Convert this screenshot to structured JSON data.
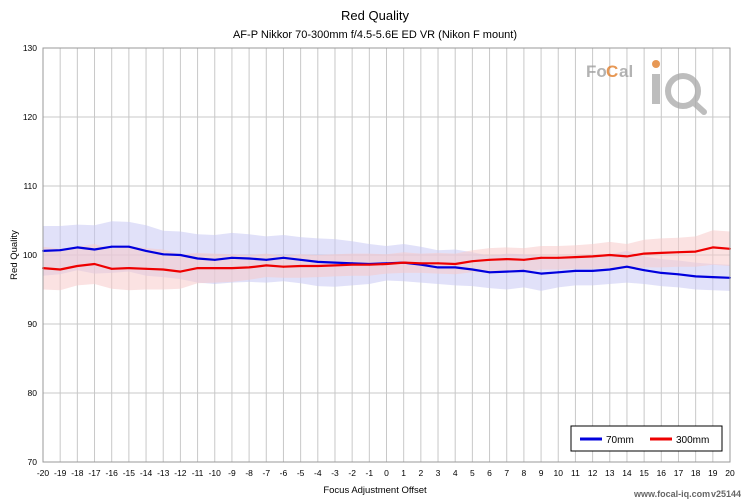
{
  "chart_data": {
    "type": "line",
    "title": "Red Quality",
    "subtitle": "AF-P Nikkor 70-300mm f/4.5-5.6E ED VR (Nikon F mount)",
    "xlabel": "Focus Adjustment Offset",
    "ylabel": "Red Quality",
    "xlim": [
      -20,
      20
    ],
    "ylim": [
      70,
      130
    ],
    "yticks": [
      70,
      80,
      90,
      100,
      110,
      120,
      130
    ],
    "x": [
      -20,
      -19,
      -18,
      -17,
      -16,
      -15,
      -14,
      -13,
      -12,
      -11,
      -10,
      -9,
      -8,
      -7,
      -6,
      -5,
      -4,
      -3,
      -2,
      -1,
      0,
      1,
      2,
      3,
      4,
      5,
      6,
      7,
      8,
      9,
      10,
      11,
      12,
      13,
      14,
      15,
      16,
      17,
      18,
      19,
      20
    ],
    "grid": true,
    "legend_position": "bottom-right",
    "series": [
      {
        "name": "70mm",
        "color": "#0000dd",
        "band_color": "#c8c8f4",
        "values": [
          100.6,
          100.7,
          101.1,
          100.8,
          101.2,
          101.2,
          100.6,
          100.1,
          100.0,
          99.5,
          99.3,
          99.6,
          99.5,
          99.3,
          99.6,
          99.3,
          99.0,
          98.9,
          98.8,
          98.7,
          98.8,
          98.9,
          98.6,
          98.2,
          98.2,
          97.9,
          97.5,
          97.6,
          97.7,
          97.3,
          97.5,
          97.7,
          97.7,
          97.9,
          98.3,
          97.8,
          97.4,
          97.2,
          96.9,
          96.8,
          96.7
        ],
        "lower": [
          97.0,
          97.2,
          97.8,
          97.3,
          97.4,
          97.6,
          97.0,
          96.8,
          96.5,
          96.0,
          95.8,
          96.0,
          96.1,
          96.0,
          96.2,
          95.9,
          95.5,
          95.4,
          95.6,
          95.8,
          96.3,
          96.2,
          96.0,
          95.8,
          95.6,
          95.5,
          95.2,
          95.0,
          95.3,
          94.8,
          95.3,
          95.6,
          95.6,
          95.8,
          96.0,
          95.8,
          95.5,
          95.3,
          95.0,
          94.9,
          94.8
        ],
        "upper": [
          104.2,
          104.2,
          104.4,
          104.3,
          104.9,
          104.8,
          104.3,
          103.5,
          103.4,
          103.0,
          102.9,
          103.2,
          103.0,
          102.7,
          102.9,
          102.6,
          102.4,
          102.3,
          102.0,
          101.6,
          101.3,
          101.6,
          101.2,
          100.7,
          100.8,
          100.4,
          99.9,
          100.2,
          100.1,
          99.8,
          99.7,
          99.8,
          99.8,
          100.1,
          100.6,
          99.8,
          99.4,
          99.2,
          98.9,
          98.7,
          98.6
        ]
      },
      {
        "name": "300mm",
        "color": "#ee0000",
        "band_color": "#f8caca",
        "values": [
          98.1,
          97.9,
          98.4,
          98.7,
          98.0,
          98.1,
          98.0,
          97.9,
          97.6,
          98.1,
          98.1,
          98.1,
          98.2,
          98.5,
          98.3,
          98.4,
          98.4,
          98.5,
          98.6,
          98.6,
          98.7,
          98.9,
          98.8,
          98.8,
          98.7,
          99.1,
          99.3,
          99.4,
          99.3,
          99.6,
          99.6,
          99.7,
          99.8,
          100.0,
          99.8,
          100.2,
          100.3,
          100.4,
          100.5,
          101.1,
          100.9
        ],
        "lower": [
          95.0,
          94.9,
          95.6,
          95.8,
          95.1,
          94.9,
          95.0,
          95.0,
          95.1,
          95.9,
          96.0,
          96.1,
          96.4,
          96.8,
          96.7,
          96.7,
          96.8,
          96.9,
          97.0,
          97.0,
          97.3,
          97.4,
          97.4,
          97.3,
          97.2,
          97.5,
          97.6,
          97.7,
          97.6,
          97.9,
          97.9,
          98.0,
          98.0,
          98.1,
          98.0,
          98.2,
          98.2,
          98.3,
          98.3,
          98.6,
          98.4
        ],
        "upper": [
          101.2,
          100.9,
          101.2,
          101.6,
          100.9,
          101.3,
          101.0,
          100.8,
          100.1,
          100.3,
          100.2,
          100.1,
          100.0,
          100.2,
          99.9,
          100.1,
          100.0,
          100.1,
          100.2,
          100.2,
          100.1,
          100.4,
          100.2,
          100.3,
          100.2,
          100.7,
          101.0,
          101.1,
          101.0,
          101.3,
          101.3,
          101.4,
          101.6,
          101.9,
          101.6,
          102.2,
          102.4,
          102.5,
          102.7,
          103.6,
          103.4
        ]
      }
    ]
  },
  "logo": {
    "text_left": "Fo",
    "text_c": "C",
    "text_right": "al",
    "text_iq": "iQ"
  },
  "footer": {
    "site": "www.focal-iq.com",
    "version": "v25144"
  }
}
